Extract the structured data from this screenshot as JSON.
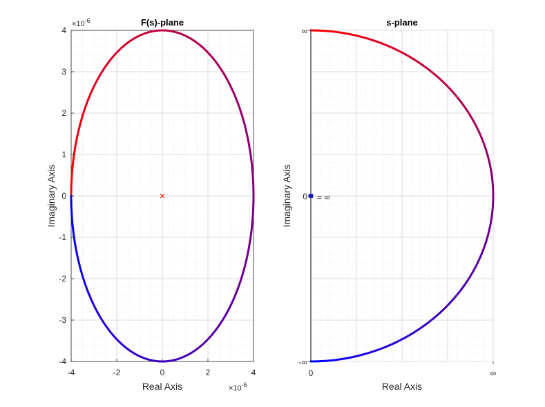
{
  "chart_data": [
    {
      "type": "line",
      "title": "F(s)-plane",
      "xlabel": "Real Axis",
      "ylabel": "Imaginary Axis",
      "xlim": [
        -4e-06,
        4e-06
      ],
      "ylim": [
        -4e-06,
        4e-06
      ],
      "x_ticks": [
        -4,
        -2,
        0,
        2,
        4
      ],
      "y_ticks": [
        -4,
        -3,
        -2,
        -1,
        0,
        1,
        2,
        3,
        4
      ],
      "x_exponent": "×10",
      "x_exponent_power": "-6",
      "y_exponent": "×10",
      "y_exponent_power": "-6",
      "grid": true,
      "minor_grid": true,
      "curve": {
        "shape": "closed ellipse",
        "center": [
          0,
          0
        ],
        "x_semi_axis": 4e-06,
        "y_semi_axis": 4e-06,
        "color_start": "#ff0000",
        "color_end": "#0000ff"
      },
      "markers": [
        {
          "symbol": "x",
          "x": 0,
          "y": 0,
          "color": "#ff0000"
        }
      ]
    },
    {
      "type": "line",
      "title": "s-plane",
      "xlabel": "Real Axis",
      "ylabel": "Imaginary Axis",
      "x_tick_labels": [
        "0",
        "∞"
      ],
      "y_tick_labels": [
        "-∞",
        "0",
        "∞"
      ],
      "grid": true,
      "minor_grid": true,
      "curve": {
        "shape": "D-contour (half circle of infinite radius on the right, closed by the imaginary axis)",
        "color_start": "#ff0000",
        "color_end": "#0000ff"
      },
      "markers": [
        {
          "symbol": "*",
          "x": 0,
          "y": 0,
          "color": "#0000ff"
        },
        {
          "symbol": "o",
          "x": 0,
          "y": 0,
          "color": "#000000"
        }
      ],
      "annotation": "= ∞",
      "axis_line_color": "#000000"
    }
  ]
}
